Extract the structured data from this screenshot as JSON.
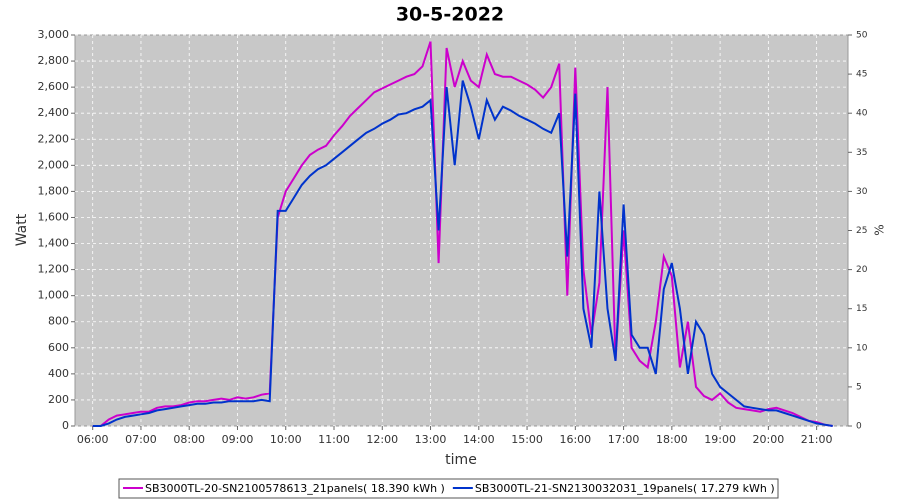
{
  "chart_data": {
    "type": "line",
    "title": "30-5-2022",
    "x_label": "time",
    "y_label": "Watt",
    "y2_label": "%",
    "x": [
      360,
      370,
      380,
      390,
      400,
      410,
      420,
      430,
      440,
      450,
      460,
      470,
      480,
      490,
      500,
      510,
      520,
      530,
      540,
      550,
      560,
      570,
      580,
      590,
      600,
      610,
      620,
      630,
      640,
      650,
      660,
      670,
      680,
      690,
      700,
      710,
      720,
      730,
      740,
      750,
      760,
      770,
      780,
      790,
      800,
      810,
      820,
      830,
      840,
      850,
      860,
      870,
      880,
      890,
      900,
      910,
      920,
      930,
      940,
      950,
      960,
      970,
      980,
      990,
      1000,
      1010,
      1020,
      1030,
      1040,
      1050,
      1060,
      1070,
      1080,
      1090,
      1100,
      1110,
      1120,
      1130,
      1140,
      1150,
      1160,
      1170,
      1180,
      1190,
      1200,
      1210,
      1220,
      1230,
      1240,
      1250,
      1260,
      1270,
      1280
    ],
    "series": [
      {
        "name": "SB3000TL-20-SN2100578613_21panels( 18.390 kWh )",
        "color": "#cc00cc",
        "values": [
          0,
          0,
          50,
          80,
          90,
          100,
          110,
          110,
          140,
          150,
          150,
          160,
          180,
          190,
          190,
          200,
          210,
          200,
          220,
          210,
          220,
          240,
          250,
          1600,
          1800,
          1900,
          2000,
          2080,
          2120,
          2150,
          2230,
          2300,
          2380,
          2440,
          2500,
          2560,
          2590,
          2620,
          2650,
          2680,
          2700,
          2760,
          2950,
          1250,
          2900,
          2600,
          2800,
          2650,
          2600,
          2850,
          2700,
          2680,
          2680,
          2650,
          2620,
          2580,
          2520,
          2600,
          2780,
          1000,
          2750,
          1200,
          700,
          1100,
          2600,
          500,
          1500,
          600,
          500,
          450,
          800,
          1300,
          1150,
          450,
          800,
          300,
          230,
          200,
          250,
          180,
          140,
          130,
          120,
          110,
          130,
          140,
          120,
          100,
          70,
          40,
          30,
          10,
          0
        ]
      },
      {
        "name": "SB3000TL-21-SN2130032031_19panels( 17.279 kWh )",
        "color": "#0033cc",
        "values": [
          0,
          0,
          20,
          50,
          70,
          80,
          90,
          100,
          120,
          130,
          140,
          150,
          160,
          170,
          170,
          180,
          180,
          190,
          190,
          190,
          190,
          200,
          190,
          1650,
          1650,
          1750,
          1850,
          1920,
          1970,
          2000,
          2050,
          2100,
          2150,
          2200,
          2250,
          2280,
          2320,
          2350,
          2390,
          2400,
          2430,
          2450,
          2500,
          1500,
          2600,
          2000,
          2650,
          2450,
          2200,
          2500,
          2350,
          2450,
          2420,
          2380,
          2350,
          2320,
          2280,
          2250,
          2400,
          1300,
          2550,
          900,
          600,
          1800,
          900,
          500,
          1700,
          700,
          600,
          600,
          400,
          1050,
          1250,
          900,
          400,
          800,
          700,
          400,
          300,
          250,
          200,
          150,
          140,
          130,
          120,
          120,
          100,
          80,
          60,
          40,
          20,
          10,
          0
        ]
      }
    ],
    "xlim": [
      338,
      1299
    ],
    "xticks": [
      {
        "value": 360,
        "label": "06:00"
      },
      {
        "value": 420,
        "label": "07:00"
      },
      {
        "value": 480,
        "label": "08:00"
      },
      {
        "value": 540,
        "label": "09:00"
      },
      {
        "value": 600,
        "label": "10:00"
      },
      {
        "value": 660,
        "label": "11:00"
      },
      {
        "value": 720,
        "label": "12:00"
      },
      {
        "value": 780,
        "label": "13:00"
      },
      {
        "value": 840,
        "label": "14:00"
      },
      {
        "value": 900,
        "label": "15:00"
      },
      {
        "value": 960,
        "label": "16:00"
      },
      {
        "value": 1020,
        "label": "17:00"
      },
      {
        "value": 1080,
        "label": "18:00"
      },
      {
        "value": 1140,
        "label": "19:00"
      },
      {
        "value": 1200,
        "label": "20:00"
      },
      {
        "value": 1260,
        "label": "21:00"
      }
    ],
    "ylim": [
      0,
      3000
    ],
    "yticks": [
      0,
      200,
      400,
      600,
      800,
      {
        "value": 1000,
        "label": "1,000"
      },
      {
        "value": 1200,
        "label": "1,200"
      },
      {
        "value": 1400,
        "label": "1,400"
      },
      {
        "value": 1600,
        "label": "1,600"
      },
      {
        "value": 1800,
        "label": "1,800"
      },
      {
        "value": 2000,
        "label": "2,000"
      },
      {
        "value": 2200,
        "label": "2,200"
      },
      {
        "value": 2400,
        "label": "2,400"
      },
      {
        "value": 2600,
        "label": "2,600"
      },
      {
        "value": 2800,
        "label": "2,800"
      },
      {
        "value": 3000,
        "label": "3,000"
      }
    ],
    "y2lim": [
      0,
      50
    ],
    "y2ticks": [
      0,
      5,
      10,
      15,
      20,
      25,
      30,
      35,
      40,
      45,
      50
    ],
    "grid": true
  }
}
